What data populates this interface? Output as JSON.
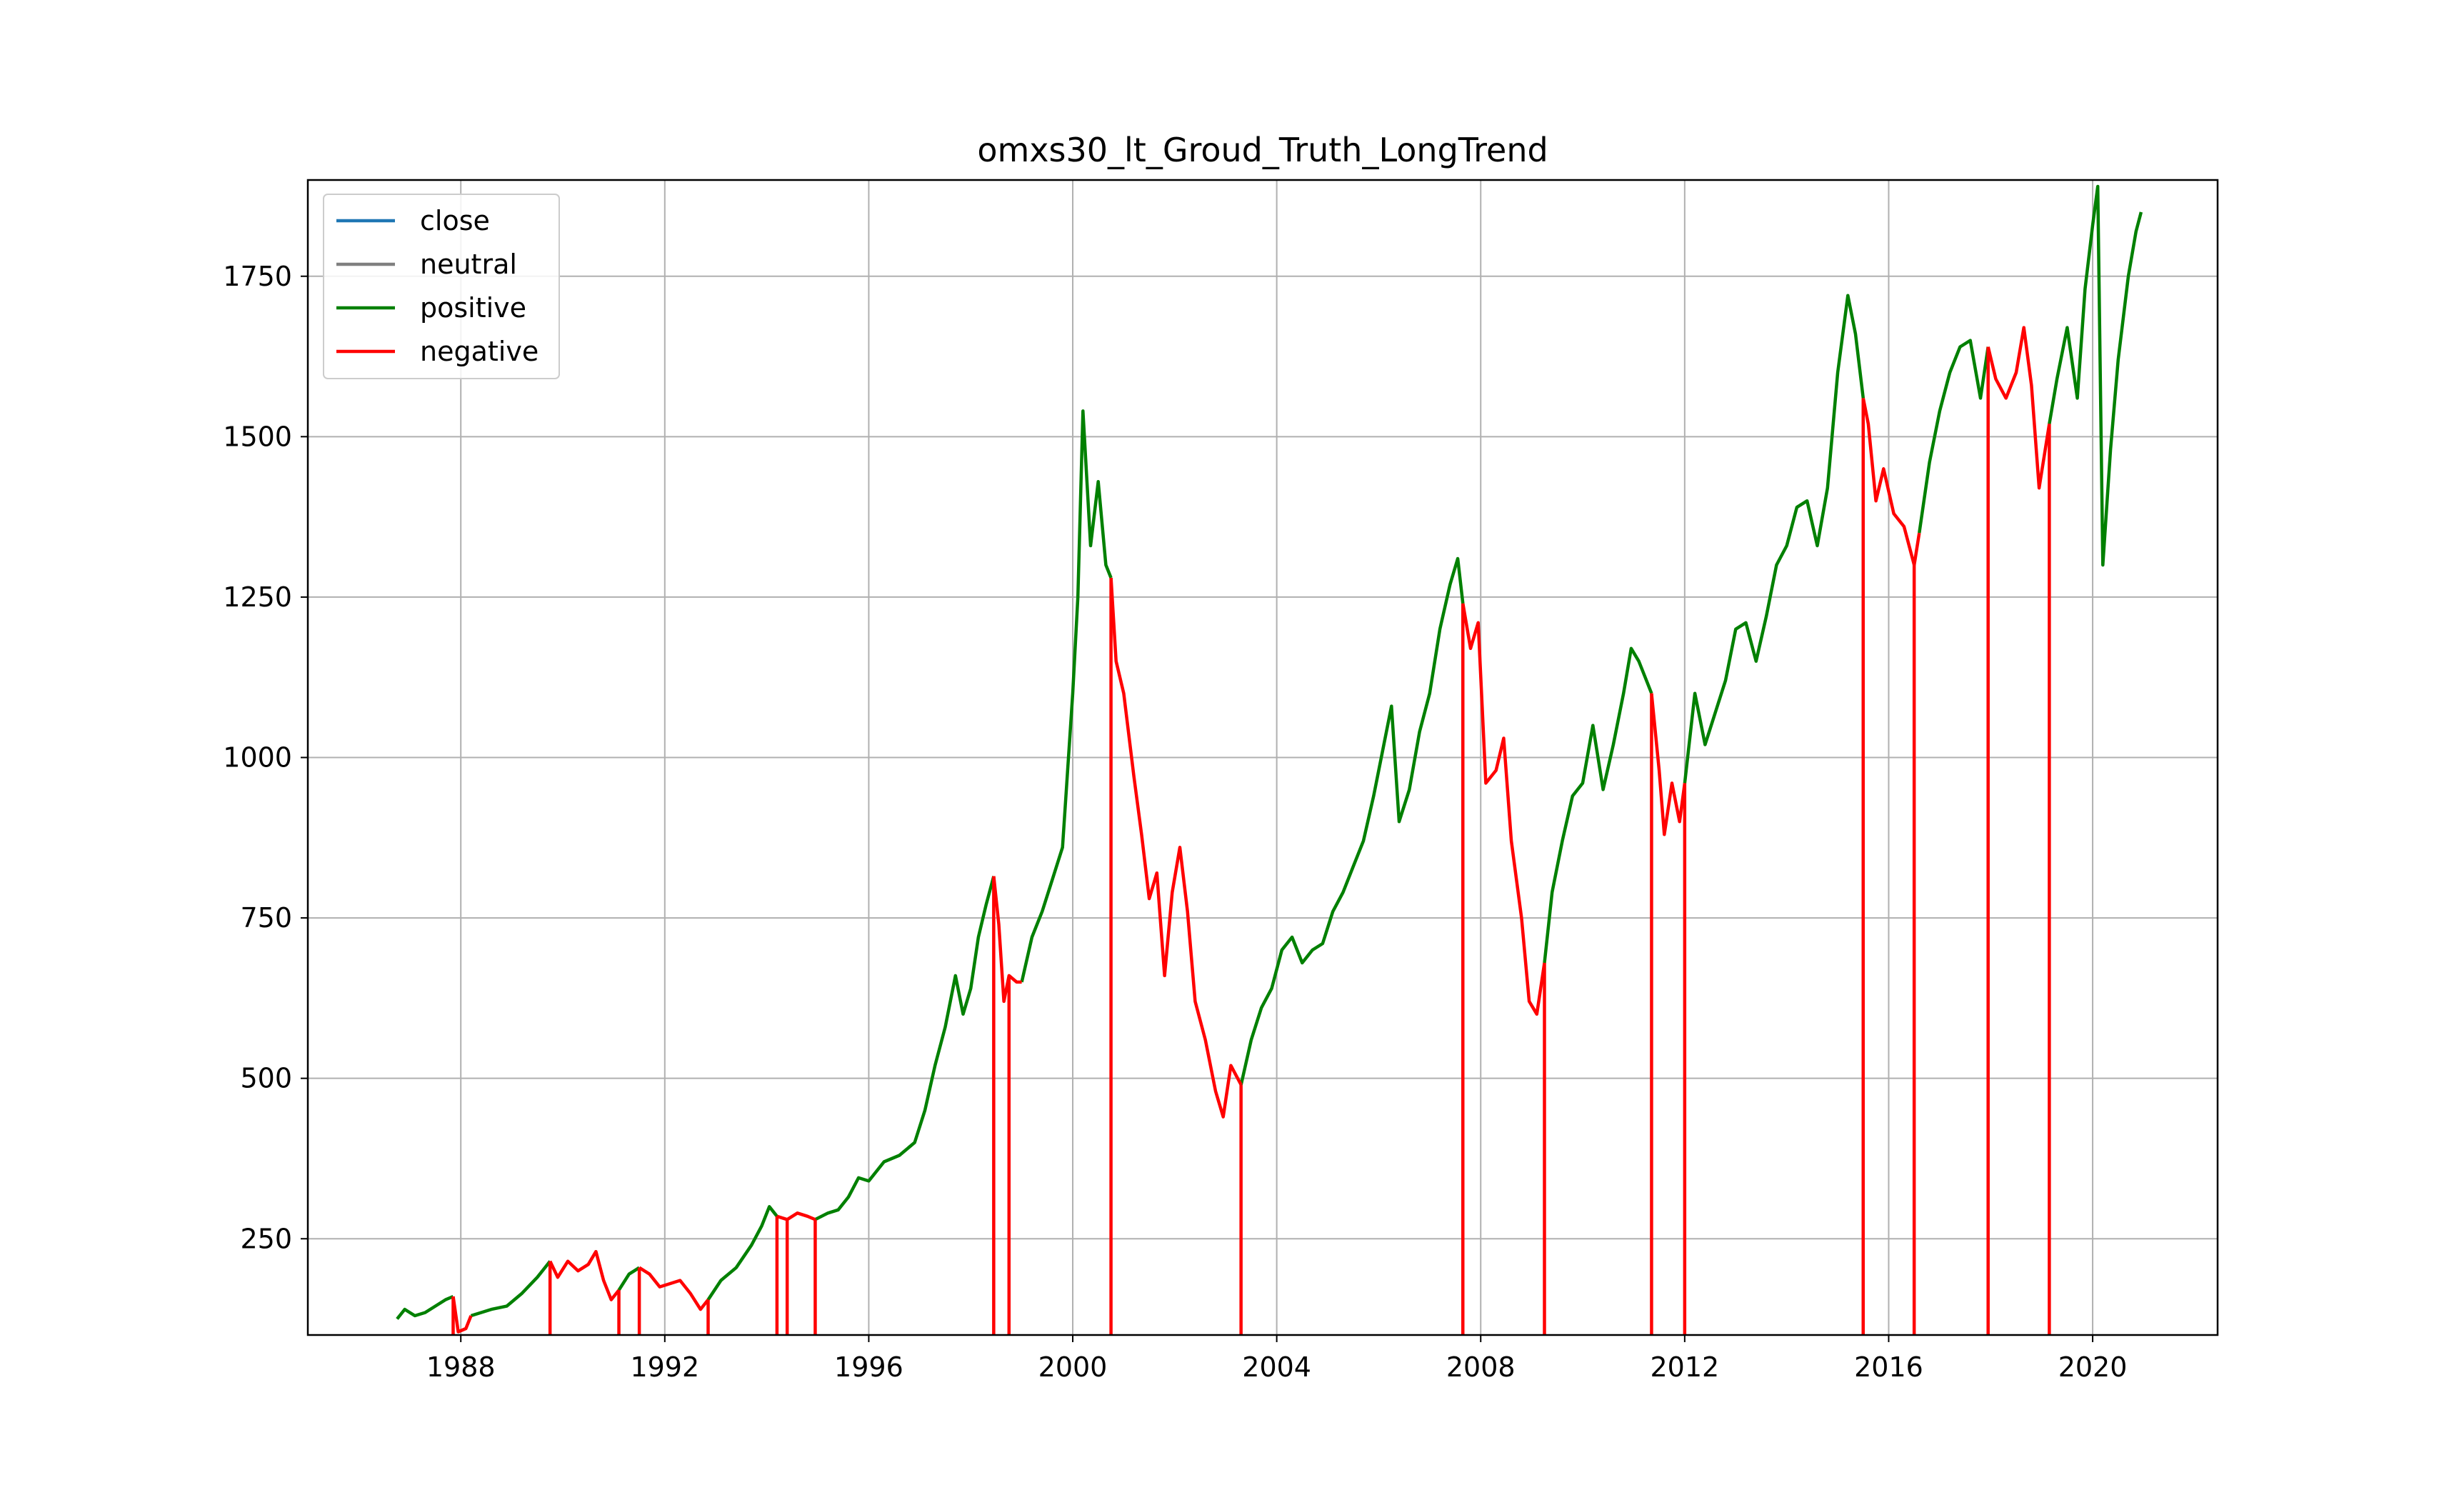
{
  "chart_data": {
    "type": "line",
    "title": "omxs30_lt_Groud_Truth_LongTrend",
    "xlabel": "",
    "ylabel": "",
    "xlim": [
      1985.0,
      2022.45
    ],
    "ylim": [
      100,
      1900
    ],
    "x_ticks": [
      1988,
      1992,
      1996,
      2000,
      2004,
      2008,
      2012,
      2016,
      2020
    ],
    "y_ticks": [
      250,
      500,
      750,
      1000,
      1250,
      1500,
      1750
    ],
    "grid": true,
    "legend_placement": "upper-left",
    "legend": [
      {
        "name": "close",
        "color": "#1f77b4"
      },
      {
        "name": "neutral",
        "color": "#808080"
      },
      {
        "name": "positive",
        "color": "#008000"
      },
      {
        "name": "negative",
        "color": "#ff0000"
      }
    ],
    "series": [
      {
        "name": "close",
        "color": "#1f77b4",
        "points": []
      },
      {
        "name": "neutral",
        "color": "#808080",
        "points": []
      },
      {
        "name": "positive",
        "color": "#008000",
        "segments": [
          [
            [
              1986.75,
              125
            ],
            [
              1986.9,
              140
            ],
            [
              1987.1,
              130
            ],
            [
              1987.3,
              135
            ],
            [
              1987.5,
              145
            ],
            [
              1987.7,
              155
            ],
            [
              1987.85,
              160
            ]
          ],
          [
            [
              1988.2,
              130
            ],
            [
              1988.6,
              140
            ],
            [
              1988.9,
              145
            ],
            [
              1989.2,
              165
            ],
            [
              1989.5,
              190
            ],
            [
              1989.75,
              215
            ]
          ],
          [
            [
              1991.1,
              170
            ],
            [
              1991.3,
              195
            ],
            [
              1991.5,
              205
            ]
          ],
          [
            [
              1992.85,
              155
            ],
            [
              1993.1,
              185
            ],
            [
              1993.4,
              205
            ],
            [
              1993.7,
              240
            ],
            [
              1993.9,
              270
            ],
            [
              1994.05,
              300
            ],
            [
              1994.2,
              285
            ]
          ],
          [
            [
              1994.95,
              280
            ],
            [
              1995.2,
              290
            ],
            [
              1995.4,
              295
            ],
            [
              1995.6,
              315
            ],
            [
              1995.8,
              345
            ],
            [
              1996.0,
              340
            ],
            [
              1996.3,
              370
            ],
            [
              1996.6,
              380
            ],
            [
              1996.9,
              400
            ],
            [
              1997.1,
              450
            ],
            [
              1997.3,
              520
            ],
            [
              1997.5,
              580
            ],
            [
              1997.7,
              660
            ],
            [
              1997.85,
              600
            ],
            [
              1998.0,
              640
            ],
            [
              1998.15,
              720
            ],
            [
              1998.3,
              770
            ],
            [
              1998.45,
              815
            ]
          ],
          [
            [
              1999.0,
              650
            ],
            [
              1999.2,
              720
            ],
            [
              1999.4,
              760
            ],
            [
              1999.6,
              810
            ],
            [
              1999.8,
              860
            ],
            [
              2000.0,
              1100
            ],
            [
              2000.1,
              1250
            ],
            [
              2000.2,
              1540
            ],
            [
              2000.35,
              1330
            ],
            [
              2000.5,
              1430
            ],
            [
              2000.65,
              1300
            ],
            [
              2000.75,
              1280
            ]
          ],
          [
            [
              2003.3,
              490
            ],
            [
              2003.5,
              560
            ],
            [
              2003.7,
              610
            ],
            [
              2003.9,
              640
            ],
            [
              2004.1,
              700
            ],
            [
              2004.3,
              720
            ],
            [
              2004.5,
              680
            ],
            [
              2004.7,
              700
            ],
            [
              2004.9,
              710
            ],
            [
              2005.1,
              760
            ],
            [
              2005.3,
              790
            ],
            [
              2005.5,
              830
            ],
            [
              2005.7,
              870
            ],
            [
              2005.9,
              940
            ],
            [
              2006.1,
              1020
            ],
            [
              2006.25,
              1080
            ],
            [
              2006.4,
              900
            ],
            [
              2006.6,
              950
            ],
            [
              2006.8,
              1040
            ],
            [
              2007.0,
              1100
            ],
            [
              2007.2,
              1200
            ],
            [
              2007.4,
              1270
            ],
            [
              2007.55,
              1310
            ],
            [
              2007.65,
              1240
            ]
          ],
          [
            [
              2009.25,
              680
            ],
            [
              2009.4,
              790
            ],
            [
              2009.6,
              870
            ],
            [
              2009.8,
              940
            ],
            [
              2010.0,
              960
            ],
            [
              2010.2,
              1050
            ],
            [
              2010.4,
              950
            ],
            [
              2010.6,
              1020
            ],
            [
              2010.8,
              1100
            ],
            [
              2010.95,
              1170
            ],
            [
              2011.1,
              1150
            ],
            [
              2011.25,
              1120
            ],
            [
              2011.35,
              1100
            ]
          ],
          [
            [
              2012.0,
              960
            ],
            [
              2012.2,
              1100
            ],
            [
              2012.4,
              1020
            ],
            [
              2012.6,
              1070
            ],
            [
              2012.8,
              1120
            ],
            [
              2013.0,
              1200
            ],
            [
              2013.2,
              1210
            ],
            [
              2013.4,
              1150
            ],
            [
              2013.6,
              1220
            ],
            [
              2013.8,
              1300
            ],
            [
              2014.0,
              1330
            ],
            [
              2014.2,
              1390
            ],
            [
              2014.4,
              1400
            ],
            [
              2014.6,
              1330
            ],
            [
              2014.8,
              1420
            ],
            [
              2015.0,
              1600
            ],
            [
              2015.2,
              1720
            ],
            [
              2015.35,
              1660
            ],
            [
              2015.5,
              1560
            ]
          ],
          [
            [
              2016.6,
              1350
            ],
            [
              2016.8,
              1460
            ],
            [
              2017.0,
              1540
            ],
            [
              2017.2,
              1600
            ],
            [
              2017.4,
              1640
            ],
            [
              2017.6,
              1650
            ],
            [
              2017.8,
              1560
            ],
            [
              2017.95,
              1640
            ]
          ],
          [
            [
              2019.15,
              1520
            ],
            [
              2019.3,
              1590
            ],
            [
              2019.5,
              1670
            ],
            [
              2019.7,
              1560
            ],
            [
              2019.85,
              1730
            ],
            [
              2020.0,
              1830
            ],
            [
              2020.1,
              1890
            ],
            [
              2020.2,
              1300
            ],
            [
              2020.35,
              1480
            ],
            [
              2020.5,
              1620
            ],
            [
              2020.7,
              1750
            ],
            [
              2020.85,
              1820
            ],
            [
              2020.95,
              1850
            ]
          ]
        ]
      },
      {
        "name": "negative",
        "color": "#ff0000",
        "segments": [
          [
            [
              1987.85,
              160
            ],
            [
              1987.95,
              105
            ],
            [
              1988.1,
              110
            ],
            [
              1988.2,
              130
            ]
          ],
          [
            [
              1989.75,
              215
            ],
            [
              1989.9,
              190
            ],
            [
              1990.1,
              215
            ],
            [
              1990.3,
              200
            ],
            [
              1990.5,
              210
            ],
            [
              1990.65,
              230
            ],
            [
              1990.8,
              185
            ],
            [
              1990.95,
              155
            ],
            [
              1991.1,
              170
            ]
          ],
          [
            [
              1991.5,
              205
            ],
            [
              1991.7,
              195
            ],
            [
              1991.9,
              175
            ],
            [
              1992.1,
              180
            ],
            [
              1992.3,
              185
            ],
            [
              1992.5,
              165
            ],
            [
              1992.7,
              140
            ],
            [
              1992.85,
              155
            ]
          ],
          [
            [
              1994.2,
              285
            ],
            [
              1994.4,
              280
            ],
            [
              1994.6,
              290
            ],
            [
              1994.8,
              285
            ],
            [
              1994.95,
              280
            ]
          ],
          [
            [
              1998.45,
              815
            ],
            [
              1998.55,
              740
            ],
            [
              1998.65,
              620
            ],
            [
              1998.75,
              660
            ],
            [
              1998.9,
              650
            ],
            [
              1999.0,
              650
            ]
          ],
          [
            [
              2000.75,
              1280
            ],
            [
              2000.85,
              1150
            ],
            [
              2001.0,
              1100
            ],
            [
              2001.2,
              970
            ],
            [
              2001.35,
              880
            ],
            [
              2001.5,
              780
            ],
            [
              2001.65,
              820
            ],
            [
              2001.8,
              660
            ],
            [
              2001.95,
              790
            ],
            [
              2002.1,
              860
            ],
            [
              2002.25,
              760
            ],
            [
              2002.4,
              620
            ],
            [
              2002.6,
              560
            ],
            [
              2002.8,
              480
            ],
            [
              2002.95,
              440
            ],
            [
              2003.1,
              520
            ],
            [
              2003.3,
              490
            ]
          ],
          [
            [
              2007.65,
              1240
            ],
            [
              2007.8,
              1170
            ],
            [
              2007.95,
              1210
            ],
            [
              2008.1,
              960
            ],
            [
              2008.3,
              980
            ],
            [
              2008.45,
              1030
            ],
            [
              2008.6,
              870
            ],
            [
              2008.8,
              750
            ],
            [
              2008.95,
              620
            ],
            [
              2009.1,
              600
            ],
            [
              2009.25,
              680
            ]
          ],
          [
            [
              2011.35,
              1100
            ],
            [
              2011.5,
              980
            ],
            [
              2011.6,
              880
            ],
            [
              2011.75,
              960
            ],
            [
              2011.9,
              900
            ],
            [
              2012.0,
              960
            ]
          ],
          [
            [
              2015.5,
              1560
            ],
            [
              2015.6,
              1520
            ],
            [
              2015.75,
              1400
            ],
            [
              2015.9,
              1450
            ],
            [
              2016.1,
              1380
            ],
            [
              2016.3,
              1360
            ],
            [
              2016.5,
              1300
            ],
            [
              2016.6,
              1350
            ]
          ],
          [
            [
              2017.95,
              1640
            ],
            [
              2018.1,
              1590
            ],
            [
              2018.3,
              1560
            ],
            [
              2018.5,
              1600
            ],
            [
              2018.65,
              1670
            ],
            [
              2018.8,
              1580
            ],
            [
              2018.95,
              1420
            ],
            [
              2019.15,
              1520
            ]
          ]
        ],
        "drops": [
          1987.85,
          1989.75,
          1991.1,
          1991.5,
          1992.85,
          1994.2,
          1994.4,
          1994.95,
          1998.45,
          1998.75,
          2000.75,
          2003.3,
          2007.65,
          2009.25,
          2011.35,
          2012.0,
          2015.5,
          2016.5,
          2017.95,
          2019.15
        ]
      }
    ]
  }
}
